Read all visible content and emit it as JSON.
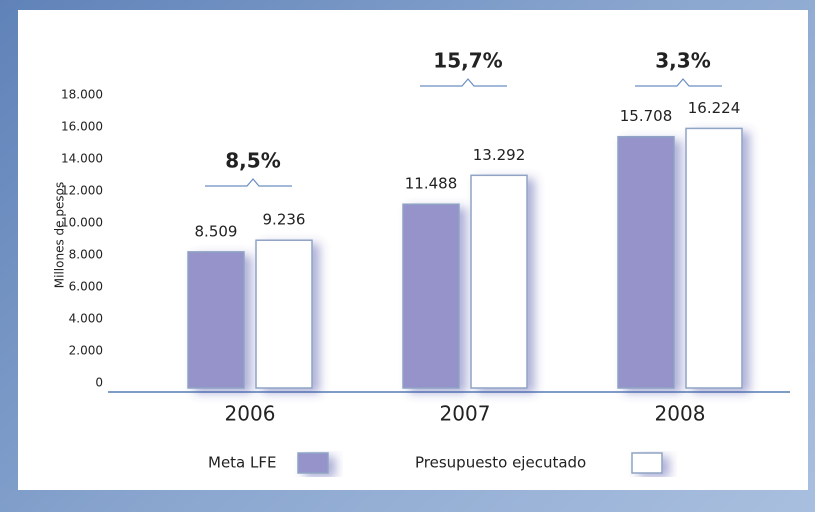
{
  "chart_data": {
    "type": "bar",
    "y_axis_label": "Millones de pesos",
    "categories": [
      "2006",
      "2007",
      "2008"
    ],
    "series": [
      {
        "name": "Meta LFE",
        "color": "#9593c9",
        "values": [
          8509,
          11488,
          15708
        ],
        "value_labels": [
          "8.509",
          "11.488",
          "15.708"
        ]
      },
      {
        "name": "Presupuesto ejecutado",
        "color": "#ffffff",
        "values": [
          9236,
          13292,
          16224
        ],
        "value_labels": [
          "9.236",
          "13.292",
          "16.224"
        ]
      }
    ],
    "annotations": [
      "8,5%",
      "15,7%",
      "3,3%"
    ],
    "ylim": [
      0,
      18000
    ],
    "yticks": [
      0,
      {
        "value": 2000,
        "label": "2.000"
      },
      {
        "value": 4000,
        "label": "4.000"
      },
      {
        "value": 6000,
        "label": "6.000"
      },
      {
        "value": 8000,
        "label": "8.000"
      },
      {
        "value": 10000,
        "label": "10.000"
      },
      {
        "value": 12000,
        "label": "12.000"
      },
      {
        "value": 14000,
        "label": "14.000"
      },
      {
        "value": 16000,
        "label": "16.000"
      },
      {
        "value": 18000,
        "label": "18.000"
      }
    ],
    "grid": false,
    "legend": "bottom"
  }
}
